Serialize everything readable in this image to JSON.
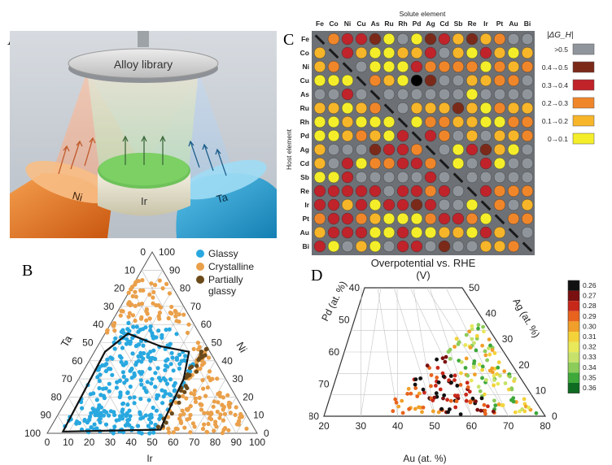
{
  "panel_letters": {
    "a": "A",
    "b": "B",
    "c": "C",
    "d": "D"
  },
  "panel_a": {
    "library_label": "Alloy library",
    "sources": [
      {
        "label": "Ni",
        "color": "#e8731e"
      },
      {
        "label": "Ir",
        "color": "#8cc86a"
      },
      {
        "label": "Ta",
        "color": "#2aa3d6"
      }
    ]
  },
  "panel_b": {
    "corner_labels": {
      "top": "Ni",
      "left": "Ta",
      "bottom": "Ir"
    },
    "tick_values": [
      "0",
      "10",
      "20",
      "30",
      "40",
      "50",
      "60",
      "70",
      "80",
      "90",
      "100"
    ],
    "legend": [
      {
        "label": "Glassy",
        "color": "#29a8e0"
      },
      {
        "label": "Crystalline",
        "color": "#eaa04a"
      },
      {
        "label": "Partially glassy",
        "color": "#6b4a1a"
      }
    ]
  },
  "panel_c": {
    "top_title": "Solute element",
    "left_title": "Host element",
    "bottom_title": "Overpotential vs. RHE",
    "bottom_unit": "(V)",
    "legend_title": "|ΔG_H|",
    "elements": [
      "Fe",
      "Co",
      "Ni",
      "Cu",
      "As",
      "Ru",
      "Rh",
      "Pd",
      "Ag",
      "Cd",
      "Sb",
      "Re",
      "Ir",
      "Pt",
      "Au",
      "Bi"
    ],
    "legend": [
      {
        "label": ">0.5",
        "color": "#8f959b"
      },
      {
        "label": "0.4→0.5",
        "color": "#7b2a1a"
      },
      {
        "label": "0.3→0.4",
        "color": "#c0232a"
      },
      {
        "label": "0.2→0.3",
        "color": "#f0862a"
      },
      {
        "label": "0.1→0.2",
        "color": "#f7b52a"
      },
      {
        "label": "0→0.1",
        "color": "#f4ee2a"
      }
    ],
    "cells": [
      "1322150512414300",
      "4324554420452454",
      "4320555233335343",
      "5555345610044330",
      "0020000000050000",
      "4454350444145344",
      "5545555533445533",
      "5543452023040443",
      "4000122340521450",
      "4025332235502500",
      "5520000020000000",
      "2222202232022333",
      "2242522120050304",
      "3223455532235033",
      "4222552554452430",
      "2504502201004433"
    ]
  },
  "panel_d": {
    "left_axis_label": "Pd (at. %)",
    "right_axis_label": "Ag (at. %)",
    "bottom_axis_label": "Au (at. %)",
    "left_ticks": [
      "80",
      "70",
      "60",
      "50",
      "40"
    ],
    "right_ticks": [
      "0",
      "10",
      "20",
      "30",
      "40",
      "50"
    ],
    "bottom_ticks": [
      "20",
      "30",
      "40",
      "50",
      "60",
      "70",
      "80"
    ],
    "colorbar": [
      {
        "label": "0.26",
        "color": "#111111"
      },
      {
        "label": "0.27",
        "color": "#7a1010"
      },
      {
        "label": "0.28",
        "color": "#c8281a"
      },
      {
        "label": "0.29",
        "color": "#e8641e"
      },
      {
        "label": "0.30",
        "color": "#f0a02a"
      },
      {
        "label": "0.31",
        "color": "#f4d23a"
      },
      {
        "label": "0.32",
        "color": "#e8e85a"
      },
      {
        "label": "0.33",
        "color": "#c6e26a"
      },
      {
        "label": "0.34",
        "color": "#8ccc5a"
      },
      {
        "label": "0.35",
        "color": "#3ea83a"
      },
      {
        "label": "0.36",
        "color": "#0f6a22"
      }
    ]
  }
}
